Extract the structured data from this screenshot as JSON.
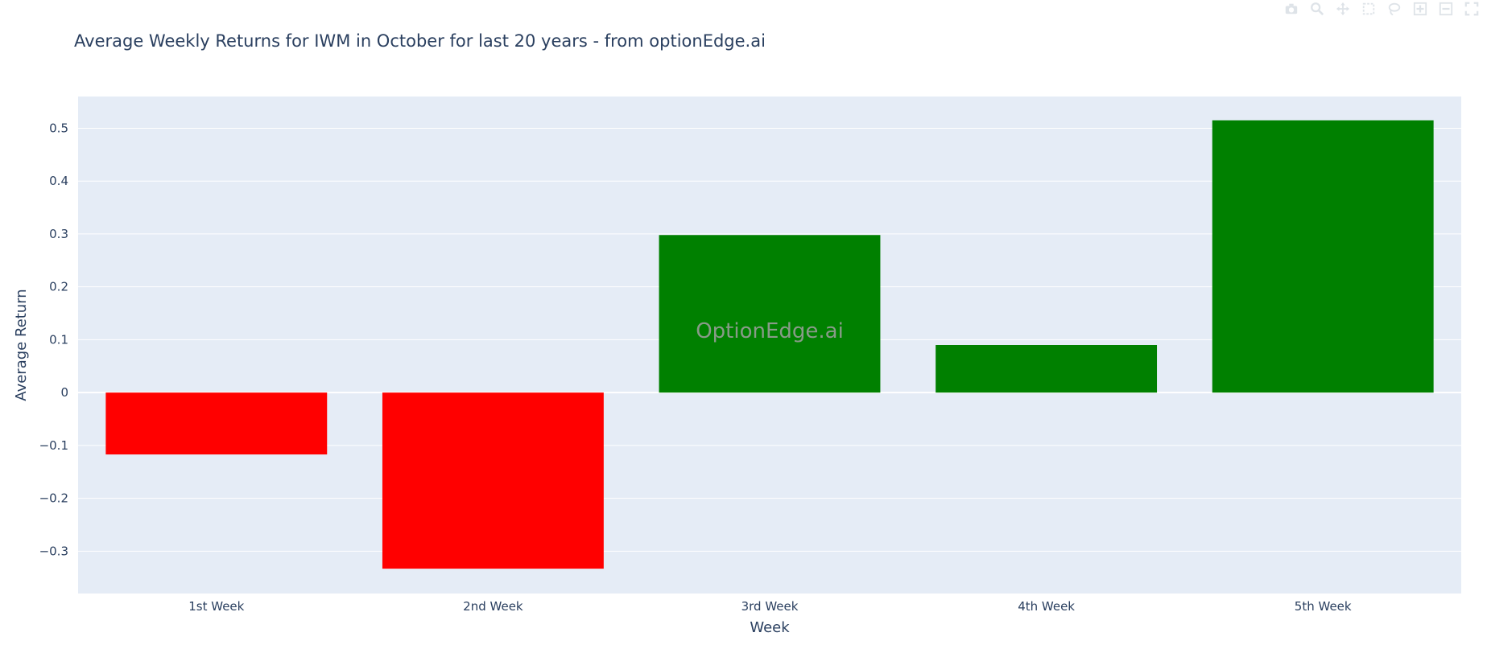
{
  "chart_data": {
    "type": "bar",
    "title": "Average Weekly Returns for IWM in October for last 20 years - from optionEdge.ai",
    "xlabel": "Week",
    "ylabel": "Average Return",
    "categories": [
      "1st Week",
      "2nd Week",
      "3rd Week",
      "4th Week",
      "5th Week"
    ],
    "values": [
      -0.117,
      -0.333,
      0.298,
      0.09,
      0.515
    ],
    "ylim": [
      -0.38,
      0.56
    ],
    "yticks": [
      -0.3,
      -0.2,
      -0.1,
      0,
      0.1,
      0.2,
      0.3,
      0.4,
      0.5
    ],
    "ytick_labels": [
      "−0.3",
      "−0.2",
      "−0.1",
      "0",
      "0.1",
      "0.2",
      "0.3",
      "0.4",
      "0.5"
    ],
    "grid": true,
    "watermark": "OptionEdge.ai",
    "colors": {
      "positive": "#008000",
      "negative": "#ff0000",
      "plot_bg": "#e5ecf6",
      "grid": "#ffffff",
      "text": "#2a3f5f"
    }
  },
  "modebar": {
    "buttons": [
      "camera-icon",
      "zoom-icon",
      "pan-icon",
      "box-select-icon",
      "lasso-icon",
      "zoom-in-icon",
      "zoom-out-icon",
      "autoscale-icon"
    ]
  }
}
